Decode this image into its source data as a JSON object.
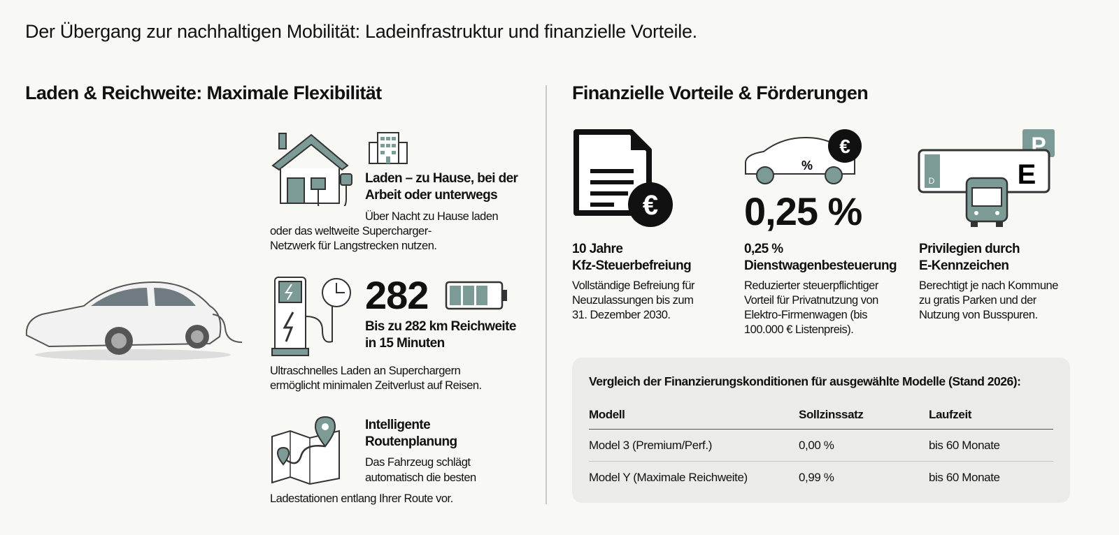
{
  "title": "Der Übergang zur nachhaltigen Mobilität: Ladeinfrastruktur und finanzielle Vorteile.",
  "colors": {
    "accent": "#7c9a96",
    "background": "#f8f8f5",
    "table_bg": "#ebebe8"
  },
  "left": {
    "heading": "Laden & Reichweite: Maximale Flexibilität",
    "charging": {
      "title": "Laden – zu Hause, bei der Arbeit oder unterwegs",
      "text_1": "Über Nacht zu Hause laden",
      "text_2": "oder das weltweite Supercharger-",
      "text_3": "Netzwerk für Langstrecken nutzen.",
      "icons": [
        "house-plug-icon",
        "office-building-icon"
      ]
    },
    "range": {
      "number": "282",
      "battery_level": 0.75,
      "title_1": "Bis zu 282 km Reichweite",
      "title_2": "in 15 Minuten",
      "text_1": "Ultraschnelles Laden an Superchargern",
      "text_2": "ermöglicht minimalen Zeitverlust auf Reisen.",
      "icons": [
        "charging-station-icon",
        "clock-icon",
        "battery-icon"
      ]
    },
    "route": {
      "title_1": "Intelligente",
      "title_2": "Routenplanung",
      "text_1": "Das Fahrzeug schlägt",
      "text_2": "automatisch die besten",
      "text_3": "Ladestationen entlang Ihrer Route vor.",
      "icons": [
        "map-pin-icon"
      ]
    }
  },
  "right": {
    "heading": "Finanzielle Vorteile & Förderungen",
    "cards": [
      {
        "title_1": "10 Jahre",
        "title_2": "Kfz-Steuerbefreiung",
        "lines": [
          "Vollständige Befreiung für",
          "Neuzulassungen bis zum",
          "31. Dezember 2030."
        ],
        "icon": "document-euro-icon"
      },
      {
        "big": "0,25 %",
        "title_1": "0,25 %",
        "title_2": "Dienstwagenbesteuerung",
        "lines": [
          "Reduzierter steuerpflichtiger",
          "Vorteil für Privatnutzung von",
          "Elektro-Firmenwagen (bis",
          "100.000 € Listenpreis)."
        ],
        "icon": "car-percent-euro-icon"
      },
      {
        "title_1": "Privilegien durch",
        "title_2": "E-Kennzeichen",
        "lines": [
          "Berechtigt je nach Kommune",
          "zu gratis Parken und der",
          "Nutzung von Busspuren."
        ],
        "icon": "license-plate-bus-parking-icon",
        "plate_letter": "E",
        "plate_country": "D",
        "parking_letter": "P"
      }
    ],
    "table": {
      "caption": "Vergleich der Finanzierungskonditionen für ausgewählte Modelle (Stand 2026):",
      "headers": [
        "Modell",
        "Sollzinssatz",
        "Laufzeit"
      ],
      "rows": [
        [
          "Model 3 (Premium/Perf.)",
          "0,00 %",
          "bis 60 Monate"
        ],
        [
          "Model Y (Maximale Reichweite)",
          "0,99 %",
          "bis 60 Monate"
        ]
      ]
    }
  }
}
